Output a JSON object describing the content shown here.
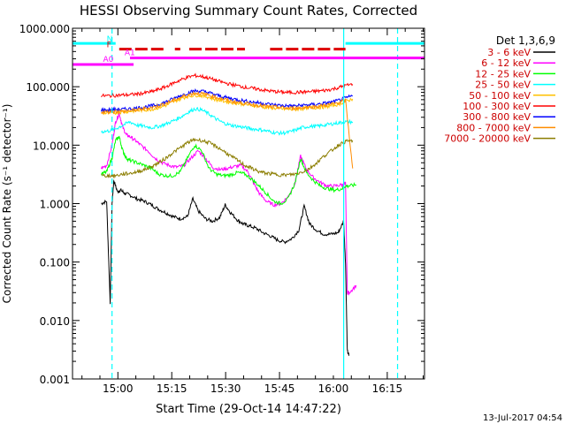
{
  "chart_data": {
    "type": "line",
    "title": "HESSI Observing Summary Count Rates, Corrected",
    "xlabel": "Start Time (29-Oct-14 14:47:22)",
    "ylabel": "Corrected Count Rate (s⁻¹ detector⁻¹)",
    "ylog": true,
    "ylim": [
      0.001,
      1000
    ],
    "xlim_minutes": [
      0,
      98
    ],
    "x_ticks": [
      {
        "label": "15:00",
        "minutes": 12.63
      },
      {
        "label": "15:15",
        "minutes": 27.63
      },
      {
        "label": "15:30",
        "minutes": 42.63
      },
      {
        "label": "15:45",
        "minutes": 57.63
      },
      {
        "label": "16:00",
        "minutes": 72.63
      },
      {
        "label": "16:15",
        "minutes": 87.63
      }
    ],
    "y_ticks": [
      {
        "label": "0.001",
        "value": 0.001
      },
      {
        "label": "0.010",
        "value": 0.01
      },
      {
        "label": "0.100",
        "value": 0.1
      },
      {
        "label": "1.000",
        "value": 1
      },
      {
        "label": "10.000",
        "value": 10
      },
      {
        "label": "100.000",
        "value": 100
      },
      {
        "label": "1000.000",
        "value": 1000
      }
    ],
    "legend_title": "Det 1,3,6,9",
    "legend_position": "right",
    "grid": false,
    "series": [
      {
        "name": "3 - 6 keV",
        "color": "#000000",
        "x": [
          8,
          9.5,
          10.5,
          11,
          11.5,
          12.5,
          13.5,
          14.5,
          16,
          18,
          20,
          22,
          24,
          26,
          28,
          30,
          32,
          33.5,
          35,
          37,
          39,
          41,
          42.5,
          44,
          46,
          47.5,
          49,
          51,
          53,
          55,
          57,
          59,
          61,
          63,
          64.5,
          66,
          68,
          70,
          72,
          74,
          75.5,
          76,
          76.5,
          77
        ],
        "y": [
          1.0,
          1.1,
          0.02,
          1.0,
          2.5,
          1.6,
          1.7,
          1.5,
          1.4,
          1.2,
          1.1,
          0.95,
          0.8,
          0.7,
          0.6,
          0.55,
          0.6,
          1.2,
          0.75,
          0.55,
          0.5,
          0.58,
          0.95,
          0.7,
          0.52,
          0.45,
          0.42,
          0.38,
          0.32,
          0.28,
          0.24,
          0.22,
          0.25,
          0.35,
          0.9,
          0.45,
          0.35,
          0.3,
          0.3,
          0.32,
          0.5,
          0.1,
          0.003,
          0.0025
        ]
      },
      {
        "name": "6 - 12 keV",
        "color": "#ff00ff",
        "x": [
          8,
          9.5,
          11,
          12,
          13,
          14,
          15,
          16,
          17.5,
          19,
          21,
          23,
          25,
          27,
          29,
          31,
          33,
          35,
          37,
          39,
          41,
          43,
          45,
          47,
          49,
          50.5,
          52,
          54,
          56,
          58,
          60,
          62,
          63.5,
          65,
          67,
          69,
          71,
          73,
          75,
          76,
          76.5,
          77,
          79
        ],
        "y": [
          4,
          4.5,
          10,
          25,
          35,
          20,
          15,
          14,
          12,
          10,
          8,
          6,
          5,
          4.5,
          4.2,
          4.5,
          6,
          8,
          6,
          4.2,
          3.8,
          4,
          4.3,
          4.5,
          3.4,
          2.2,
          1.5,
          1.1,
          0.95,
          1.0,
          1.3,
          2.3,
          6.5,
          4,
          2.8,
          2.3,
          2.0,
          2.0,
          2.1,
          2.2,
          0.03,
          0.03,
          0.04
        ]
      },
      {
        "name": "12 - 25 keV",
        "color": "#00ff00",
        "x": [
          8,
          9.5,
          11,
          12,
          13,
          14,
          15,
          16,
          18,
          20,
          22,
          24,
          26,
          28,
          30,
          32,
          34,
          36,
          38,
          40,
          42,
          44,
          46,
          48,
          50,
          52,
          54,
          56,
          58,
          60,
          62,
          63.5,
          65,
          67,
          69,
          71,
          73,
          75,
          76,
          77,
          79
        ],
        "y": [
          3.2,
          3.5,
          6,
          12,
          14,
          8,
          6,
          5.5,
          5,
          4.5,
          4,
          3.2,
          3,
          3,
          3.5,
          6,
          10,
          8,
          4,
          3.2,
          3,
          3.1,
          3.4,
          3.2,
          2.6,
          2.0,
          1.5,
          1.1,
          1.0,
          1.2,
          2.3,
          6,
          3.5,
          2.5,
          2.0,
          1.8,
          1.7,
          1.8,
          2.0,
          2.0,
          2.1
        ]
      },
      {
        "name": "25 - 50 keV",
        "color": "#00ffff",
        "x": [
          8,
          10,
          12,
          14,
          16,
          18,
          20,
          22,
          24,
          26,
          28,
          30,
          32,
          34,
          36,
          38,
          40,
          42,
          44,
          46,
          48,
          50,
          52,
          54,
          56,
          58,
          60,
          62,
          64,
          66,
          68,
          70,
          72,
          74,
          76,
          78
        ],
        "y": [
          17,
          17.5,
          19,
          22,
          25,
          22,
          21,
          20,
          21,
          23,
          26,
          30,
          36,
          42,
          40,
          34,
          28,
          24,
          22,
          21,
          20,
          19,
          18.5,
          17.5,
          16.5,
          16,
          16.5,
          18,
          20,
          21,
          21,
          22,
          23,
          24,
          25,
          25
        ]
      },
      {
        "name": "50 - 100 keV",
        "color": "#ffc000",
        "x": [
          8,
          10,
          12,
          14,
          16,
          18,
          20,
          22,
          24,
          26,
          28,
          30,
          32,
          34,
          36,
          38,
          40,
          42,
          44,
          46,
          48,
          50,
          52,
          54,
          56,
          58,
          60,
          62,
          64,
          66,
          68,
          70,
          72,
          74,
          76,
          78
        ],
        "y": [
          35,
          36,
          36,
          37,
          38,
          39,
          40,
          41,
          44,
          48,
          55,
          62,
          68,
          72,
          70,
          66,
          60,
          57,
          54,
          52,
          50,
          48,
          46,
          44,
          43,
          42,
          41,
          41,
          42,
          43,
          44,
          45,
          47,
          50,
          56,
          62
        ]
      },
      {
        "name": "100 - 300 keV",
        "color": "#ff0000",
        "x": [
          8,
          10,
          12,
          14,
          16,
          18,
          20,
          22,
          24,
          26,
          28,
          30,
          32,
          34,
          36,
          38,
          40,
          42,
          44,
          46,
          48,
          50,
          52,
          54,
          56,
          58,
          60,
          62,
          64,
          66,
          68,
          70,
          72,
          74,
          76,
          78
        ],
        "y": [
          70,
          70,
          71,
          72,
          73,
          75,
          78,
          82,
          90,
          100,
          115,
          130,
          145,
          155,
          150,
          140,
          128,
          118,
          110,
          104,
          98,
          94,
          90,
          86,
          83,
          81,
          80,
          80,
          81,
          82,
          84,
          86,
          90,
          96,
          105,
          110
        ]
      },
      {
        "name": "300 - 800 keV",
        "color": "#0000ff",
        "x": [
          8,
          10,
          12,
          14,
          16,
          18,
          20,
          22,
          24,
          26,
          28,
          30,
          32,
          34,
          36,
          38,
          40,
          42,
          44,
          46,
          48,
          50,
          52,
          54,
          56,
          58,
          60,
          62,
          64,
          66,
          68,
          70,
          72,
          74,
          76,
          78
        ],
        "y": [
          40,
          40,
          41,
          41,
          42,
          43,
          45,
          47,
          50,
          55,
          62,
          70,
          78,
          85,
          84,
          79,
          72,
          67,
          63,
          60,
          57,
          55,
          53,
          51,
          49,
          48,
          47,
          47,
          48,
          49,
          50,
          52,
          54,
          58,
          64,
          70
        ]
      },
      {
        "name": "800 - 7000 keV",
        "color": "#ff8c00",
        "x": [
          8,
          10,
          12,
          14,
          16,
          18,
          20,
          22,
          24,
          26,
          28,
          30,
          32,
          34,
          36,
          38,
          40,
          42,
          44,
          46,
          48,
          50,
          52,
          54,
          56,
          58,
          60,
          62,
          64,
          66,
          68,
          70,
          72,
          74,
          76,
          78
        ],
        "y": [
          37,
          37,
          38,
          38,
          39,
          40,
          42,
          44,
          47,
          52,
          58,
          65,
          72,
          78,
          76,
          72,
          66,
          61,
          57,
          54,
          52,
          50,
          48,
          46,
          45,
          44,
          43,
          43,
          44,
          45,
          46,
          48,
          50,
          53,
          59,
          4
        ]
      },
      {
        "name": "7000 - 20000 keV",
        "color": "#8b7d00",
        "x": [
          8,
          10,
          12,
          14,
          16,
          18,
          20,
          22,
          24,
          26,
          28,
          30,
          32,
          34,
          36,
          38,
          40,
          42,
          44,
          46,
          48,
          50,
          52,
          54,
          56,
          58,
          60,
          62,
          64,
          66,
          68,
          70,
          72,
          74,
          76,
          78
        ],
        "y": [
          3,
          3,
          3,
          3.2,
          3.3,
          3.5,
          3.8,
          4.3,
          5,
          6,
          7.5,
          9,
          11,
          12.5,
          12,
          11,
          9.5,
          8,
          6.5,
          5.5,
          4.5,
          4,
          3.5,
          3.3,
          3.2,
          3.1,
          3.1,
          3.2,
          3.5,
          4,
          5,
          6.5,
          8,
          10,
          11.5,
          12
        ]
      }
    ],
    "vertical_lines": [
      {
        "minutes": 11,
        "color": "#00ffff",
        "style": "dashed"
      },
      {
        "minutes": 75.5,
        "color": "#00ffff",
        "style": "solid"
      },
      {
        "minutes": 90.5,
        "color": "#00ffff",
        "style": "dashed"
      }
    ],
    "flag_bars": [
      {
        "label": "N",
        "color": "#00ffff",
        "value": 550,
        "segments": [
          [
            0,
            12
          ],
          [
            76,
            98
          ]
        ]
      },
      {
        "label": "F",
        "color": "#dd0000",
        "value": 440,
        "dashed": true,
        "segments": [
          [
            13,
            26
          ],
          [
            28.5,
            30
          ],
          [
            32.5,
            48
          ],
          [
            55,
            76
          ]
        ]
      },
      {
        "label": "A0",
        "color": "#ff00ff",
        "value": 240,
        "segments": [
          [
            0,
            14
          ]
        ]
      },
      {
        "label": "A1",
        "color": "#ff00ff",
        "value": 310,
        "segments": [
          [
            16,
            98
          ]
        ]
      },
      {
        "label": "",
        "color": "#ff00ff",
        "value": 240,
        "segments": [
          [
            12.5,
            17
          ]
        ]
      }
    ]
  },
  "footer": {
    "timestamp": "13-Jul-2017 04:54"
  }
}
